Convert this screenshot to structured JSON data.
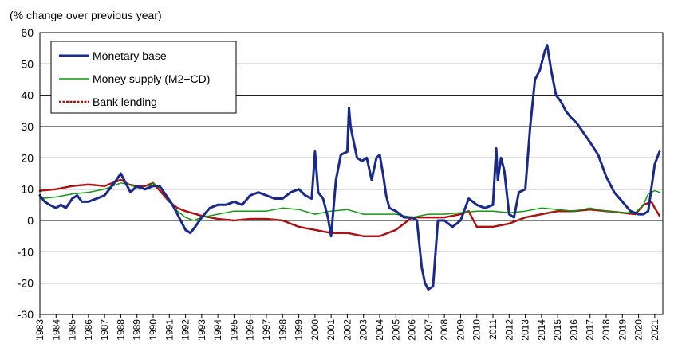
{
  "chart_data": {
    "type": "line",
    "ylabel": "(% change over previous year)",
    "ylim": [
      -30,
      60
    ],
    "yticks": [
      -30,
      -20,
      -10,
      0,
      10,
      20,
      30,
      40,
      50,
      60
    ],
    "xlim": [
      1983,
      2021.5
    ],
    "xtick_labels": [
      "1983",
      "1984",
      "1985",
      "1986",
      "1987",
      "1988",
      "1989",
      "1990",
      "1991",
      "1992",
      "1993",
      "1994",
      "1995",
      "1996",
      "1997",
      "1998",
      "1999",
      "2000",
      "2001",
      "2002",
      "2003",
      "2004",
      "2005",
      "2006",
      "2007",
      "2008",
      "2009",
      "2010",
      "2011",
      "2012",
      "2013",
      "2014",
      "2015",
      "2016",
      "2017",
      "2018",
      "2019",
      "2020",
      "2021"
    ],
    "grid": "horizontal",
    "legend_position": "top-left",
    "series": [
      {
        "name": "Monetary base",
        "color": "#1a2a8a",
        "x": [
          1983.0,
          1983.3,
          1983.6,
          1984.0,
          1984.3,
          1984.6,
          1985.0,
          1985.3,
          1985.6,
          1986.0,
          1986.5,
          1987.0,
          1987.3,
          1987.6,
          1988.0,
          1988.3,
          1988.6,
          1989.0,
          1989.5,
          1990.0,
          1990.4,
          1990.8,
          1991.2,
          1991.6,
          1992.0,
          1992.3,
          1992.6,
          1993.0,
          1993.5,
          1994.0,
          1994.5,
          1995.0,
          1995.5,
          1996.0,
          1996.5,
          1997.0,
          1997.5,
          1998.0,
          1998.5,
          1999.0,
          1999.4,
          1999.8,
          2000.0,
          2000.2,
          2000.5,
          2000.8,
          2001.0,
          2001.3,
          2001.6,
          2002.0,
          2002.1,
          2002.2,
          2002.4,
          2002.6,
          2002.9,
          2003.2,
          2003.5,
          2003.8,
          2004.0,
          2004.2,
          2004.4,
          2004.6,
          2005.0,
          2005.5,
          2006.0,
          2006.3,
          2006.6,
          2006.8,
          2007.0,
          2007.3,
          2007.6,
          2008.0,
          2008.5,
          2009.0,
          2009.5,
          2010.0,
          2010.5,
          2011.0,
          2011.2,
          2011.3,
          2011.5,
          2011.7,
          2012.0,
          2012.3,
          2012.6,
          2013.0,
          2013.3,
          2013.6,
          2013.9,
          2014.2,
          2014.35,
          2014.6,
          2014.9,
          2015.2,
          2015.5,
          2015.8,
          2016.2,
          2016.6,
          2017.0,
          2017.5,
          2018.0,
          2018.5,
          2019.0,
          2019.5,
          2020.0,
          2020.3,
          2020.6,
          2021.0,
          2021.3
        ],
        "values": [
          8,
          6,
          5,
          4,
          5,
          4,
          7,
          8,
          6,
          6,
          7,
          8,
          10,
          12,
          15,
          12,
          9,
          11,
          10,
          11,
          11,
          8,
          5,
          1,
          -3,
          -4,
          -2,
          1,
          4,
          5,
          5,
          6,
          5,
          8,
          9,
          8,
          7,
          7,
          9,
          10,
          8,
          7,
          22,
          9,
          7,
          1,
          -5,
          13,
          21,
          22,
          36,
          30,
          25,
          20,
          19,
          20,
          13,
          20,
          21,
          15,
          8,
          4,
          3,
          1,
          1,
          0,
          -15,
          -20,
          -22,
          -21,
          0,
          0,
          -2,
          0,
          7,
          5,
          4,
          5,
          23,
          13,
          20,
          16,
          2,
          1,
          9,
          10,
          30,
          45,
          48,
          54,
          56,
          48,
          40,
          38,
          35,
          33,
          31,
          28,
          25,
          21,
          14,
          9,
          6,
          3,
          2,
          2,
          3,
          18,
          22
        ],
        "line_width": 3
      },
      {
        "name": "Money supply (M2+CD)",
        "color": "#119911",
        "x": [
          1983.0,
          1984.0,
          1985.0,
          1986.0,
          1987.0,
          1987.5,
          1988.0,
          1988.5,
          1989.0,
          1989.5,
          1990.0,
          1990.5,
          1991.0,
          1991.5,
          1992.0,
          1992.5,
          1993.0,
          1994.0,
          1995.0,
          1996.0,
          1997.0,
          1998.0,
          1999.0,
          2000.0,
          2001.0,
          2002.0,
          2003.0,
          2004.0,
          2005.0,
          2006.0,
          2007.0,
          2008.0,
          2009.0,
          2010.0,
          2011.0,
          2012.0,
          2013.0,
          2014.0,
          2015.0,
          2016.0,
          2017.0,
          2018.0,
          2019.0,
          2019.8,
          2020.3,
          2020.6,
          2021.0,
          2021.3
        ],
        "values": [
          7,
          7.5,
          8.5,
          9,
          10,
          11,
          12,
          11.5,
          10.5,
          10,
          12,
          10,
          6,
          3,
          1,
          0,
          1,
          2,
          3,
          3,
          3,
          4,
          3.5,
          2,
          3,
          3.5,
          2,
          2,
          2,
          1,
          2,
          2,
          2.5,
          3,
          3,
          2.5,
          3,
          4,
          3.5,
          3,
          4,
          3,
          2.5,
          2.5,
          5,
          8.5,
          9.5,
          9
        ],
        "line_width": 1.5
      },
      {
        "name": "Bank lending",
        "color": "#aa1111",
        "x": [
          1983.0,
          1984.0,
          1985.0,
          1986.0,
          1987.0,
          1987.5,
          1988.0,
          1988.5,
          1989.0,
          1989.5,
          1990.0,
          1990.5,
          1991.0,
          1991.5,
          1992.0,
          1993.0,
          1994.0,
          1995.0,
          1996.0,
          1997.0,
          1998.0,
          1999.0,
          2000.0,
          2001.0,
          2002.0,
          2003.0,
          2004.0,
          2005.0,
          2006.0,
          2007.0,
          2008.0,
          2009.0,
          2009.5,
          2010.0,
          2011.0,
          2012.0,
          2013.0,
          2014.0,
          2015.0,
          2016.0,
          2017.0,
          2018.0,
          2019.0,
          2019.8,
          2020.3,
          2020.8,
          2021.0,
          2021.3
        ],
        "values": [
          9.5,
          10,
          11,
          11.5,
          11,
          12,
          13,
          11.5,
          11,
          11,
          12,
          9,
          6,
          4,
          3,
          1.5,
          0.5,
          0,
          0.5,
          0.5,
          0,
          -2,
          -3,
          -4,
          -4,
          -5,
          -5,
          -3,
          1,
          1,
          1,
          2,
          3,
          -2,
          -2,
          -1,
          1,
          2,
          3,
          3,
          3.5,
          3,
          2.5,
          2,
          5,
          6,
          4,
          1.5
        ],
        "line_width": 2.5
      }
    ]
  }
}
